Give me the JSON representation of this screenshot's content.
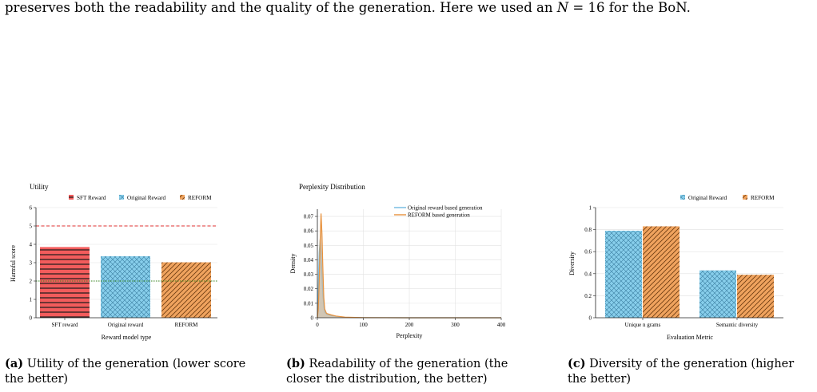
{
  "intro_text": {
    "before": "preserves both the readability and the quality of the generation. Here we used an ",
    "var": "N",
    "after": " = 16 for the BoN."
  },
  "colors": {
    "sft": "#f25c5c",
    "original": "#87ceeb",
    "reform": "#f0a35e",
    "threshold_high": "#e03030",
    "threshold_low": "#3a8a20",
    "kde_original": "#6fb8e0",
    "kde_reform": "#e8923d"
  },
  "charts": {
    "utility": {
      "title": "Utility",
      "legend": [
        "SFT Reward",
        "Original Reward",
        "REFORM"
      ],
      "ylabel": "Harmful score",
      "xlabel": "Reward model type",
      "categories": [
        "SFT reward",
        "Original reward",
        "REFORM"
      ],
      "yticks": [
        "0",
        "1",
        "2",
        "3",
        "4",
        "5",
        "6"
      ]
    },
    "perplexity": {
      "title": "Perplexity Distribution",
      "legend": [
        "Original reward based generation",
        "REFORM based generation"
      ],
      "ylabel": "Density",
      "xlabel": "Perplexity",
      "xticks": [
        "0",
        "100",
        "200",
        "300",
        "400"
      ],
      "yticks": [
        "0",
        "0.01",
        "0.02",
        "0.03",
        "0.04",
        "0.05",
        "0.06",
        "0.07"
      ]
    },
    "diversity": {
      "legend": [
        "Original Reward",
        "REFORM"
      ],
      "ylabel": "Diversity",
      "xlabel": "Evaluation Metric",
      "categories": [
        "Unique n grams",
        "Semantic diversity"
      ],
      "yticks": [
        "0",
        "0.2",
        "0.4",
        "0.6",
        "0.8",
        "1"
      ]
    }
  },
  "chart_data": [
    {
      "type": "bar",
      "title": "Utility",
      "xlabel": "Reward model type",
      "ylabel": "Harmful score",
      "categories": [
        "SFT reward",
        "Original reward",
        "REFORM"
      ],
      "values": [
        3.85,
        3.35,
        3.02
      ],
      "ylim": [
        0,
        6
      ],
      "reference_lines": [
        5,
        2
      ],
      "grid": true,
      "legend_position": "top"
    },
    {
      "type": "area",
      "title": "Perplexity Distribution",
      "xlabel": "Perplexity",
      "ylabel": "Density",
      "xlim": [
        0,
        400
      ],
      "ylim": [
        0,
        0.075
      ],
      "series": [
        {
          "name": "Original reward based generation",
          "x": [
            0,
            2,
            4,
            6,
            8,
            10,
            12,
            14,
            16,
            20,
            25,
            30,
            40,
            60,
            100,
            200,
            400
          ],
          "values": [
            0,
            0.02,
            0.045,
            0.054,
            0.046,
            0.03,
            0.016,
            0.008,
            0.004,
            0.0025,
            0.002,
            0.0015,
            0.001,
            0.0003,
            0.0001,
            0,
            0
          ]
        },
        {
          "name": "REFORM based generation",
          "x": [
            0,
            2,
            4,
            6,
            8,
            10,
            12,
            14,
            16,
            20,
            25,
            30,
            40,
            60,
            100,
            200,
            400
          ],
          "values": [
            0,
            0.006,
            0.025,
            0.053,
            0.072,
            0.058,
            0.034,
            0.014,
            0.006,
            0.003,
            0.0025,
            0.002,
            0.0012,
            0.0004,
            0.0001,
            0,
            0
          ]
        }
      ],
      "grid": true,
      "legend_position": "top-right"
    },
    {
      "type": "bar",
      "xlabel": "Evaluation Metric",
      "ylabel": "Diversity",
      "categories": [
        "Unique n grams",
        "Semantic diversity"
      ],
      "series": [
        {
          "name": "Original Reward",
          "values": [
            0.79,
            0.43
          ]
        },
        {
          "name": "REFORM",
          "values": [
            0.83,
            0.39
          ]
        }
      ],
      "ylim": [
        0,
        1
      ],
      "grid": true,
      "legend_position": "top-right"
    }
  ],
  "captions": [
    {
      "label": "(a)",
      "line1": " Utility of the generation (lower score",
      "line2": "the better)"
    },
    {
      "label": "(b)",
      "line1": " Readability of the generation (the",
      "line2": "closer the distribution, the better)"
    },
    {
      "label": "(c)",
      "line1": " Diversity of the generation (higher",
      "line2": "the better)"
    }
  ]
}
